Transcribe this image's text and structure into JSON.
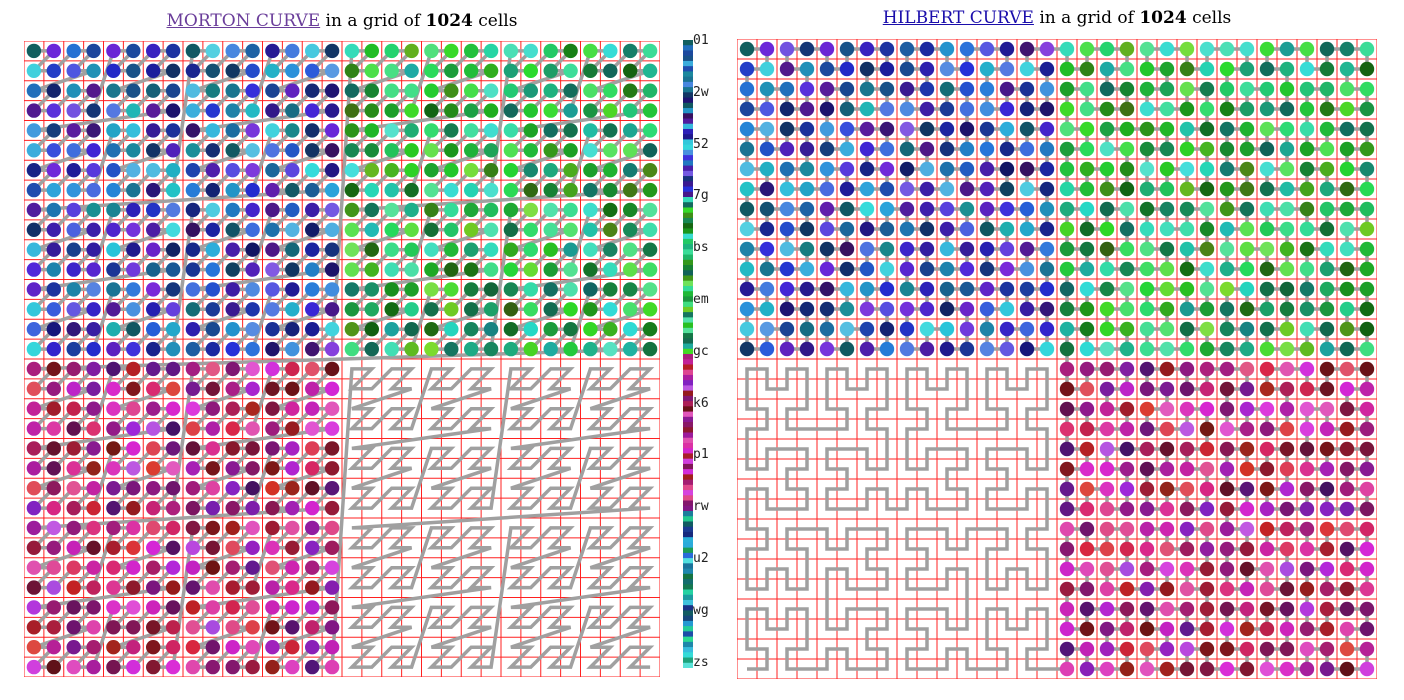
{
  "morton": {
    "title_link": "MORTON CURVE",
    "title_mid": " in a grid of ",
    "title_count": "1024",
    "title_end": " cells",
    "link_color": "#6a3d9a"
  },
  "hilbert": {
    "title_link": "HILBERT CURVE",
    "title_mid": " in a grid of ",
    "title_count": "1024",
    "title_end": " cells",
    "link_color": "#1a0dab"
  },
  "grid": {
    "cells_per_side": 32,
    "line_color": "#ff2020",
    "curve_color": "#a0a0a0",
    "morton_drawn_count": 768,
    "hilbert_drawn_count": 768
  },
  "colorbar": {
    "labels": [
      "01",
      "2w",
      "52",
      "7g",
      "bs",
      "em",
      "gc",
      "k6",
      "p1",
      "rw",
      "u2",
      "wg",
      "zs"
    ]
  }
}
